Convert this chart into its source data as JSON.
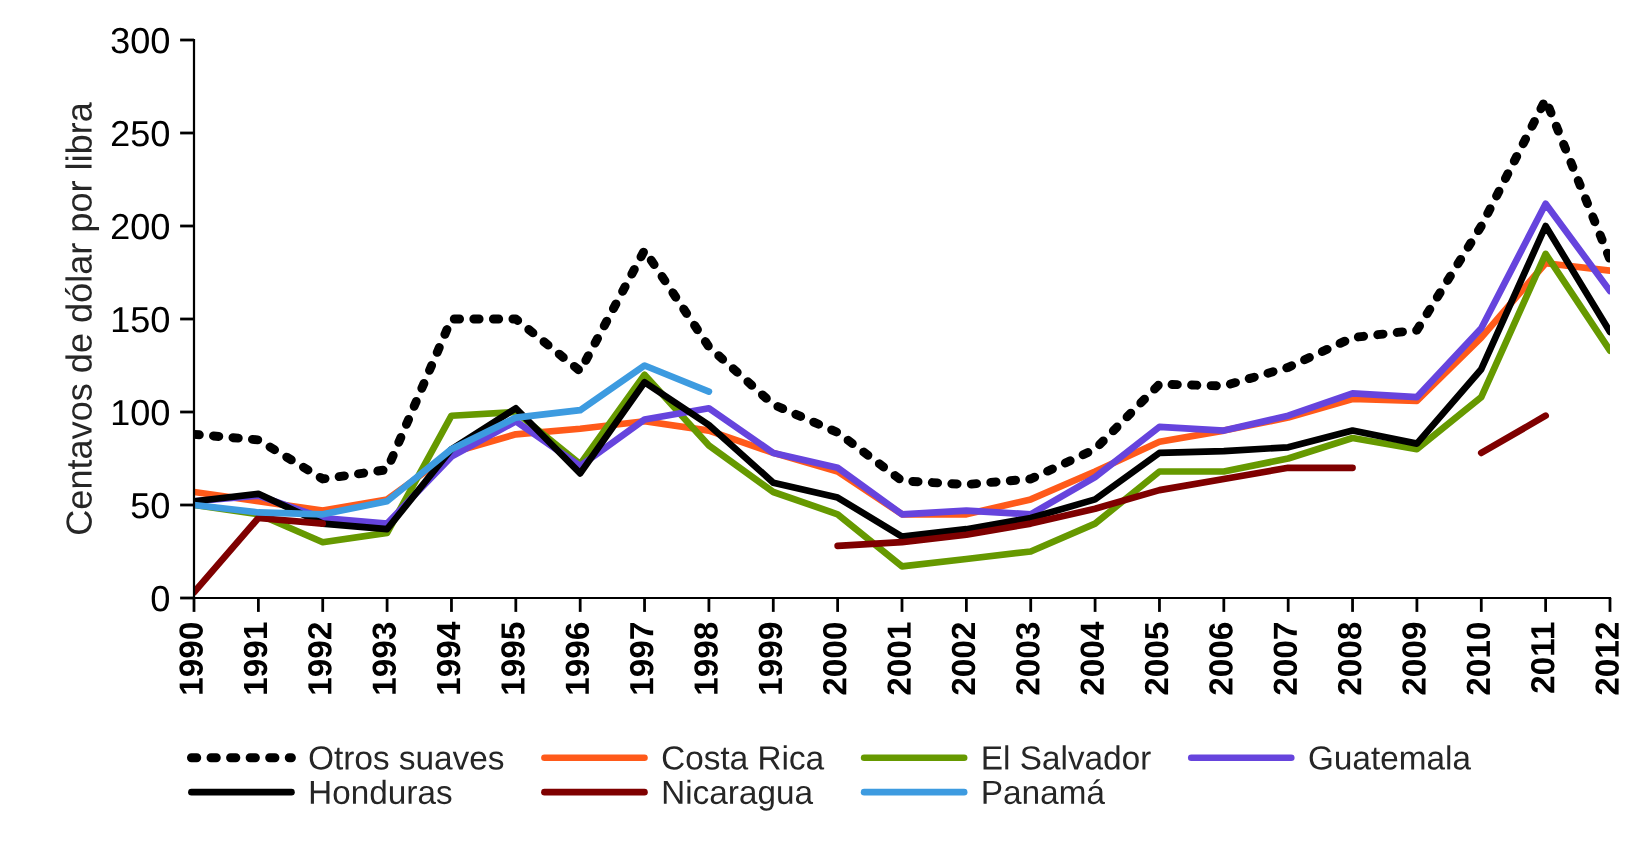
{
  "chart_data": {
    "type": "line",
    "ylabel": "Centavos de dólar por libra",
    "categories": [
      "1990",
      "1991",
      "1992",
      "1993",
      "1994",
      "1995",
      "1996",
      "1997",
      "1998",
      "1999",
      "2000",
      "2001",
      "2002",
      "2003",
      "2004",
      "2005",
      "2006",
      "2007",
      "2008",
      "2009",
      "2010",
      "2011",
      "2012"
    ],
    "series": [
      {
        "name": "Otros suaves",
        "color": "#000000",
        "line_style": "dotted",
        "values": [
          88,
          85,
          64,
          69,
          150,
          150,
          122,
          187,
          135,
          104,
          89,
          63,
          61,
          64,
          80,
          115,
          114,
          124,
          140,
          144,
          200,
          268,
          182
        ]
      },
      {
        "name": "Costa Rica",
        "color": "#ff5a1a",
        "values": [
          57,
          52,
          47,
          53,
          78,
          88,
          91,
          95,
          90,
          78,
          68,
          45,
          45,
          53,
          68,
          84,
          90,
          97,
          107,
          106,
          140,
          180,
          176
        ]
      },
      {
        "name": "El Salvador",
        "color": "#669900",
        "values": [
          50,
          45,
          30,
          35,
          98,
          100,
          72,
          120,
          82,
          57,
          45,
          17,
          21,
          25,
          40,
          68,
          68,
          75,
          86,
          80,
          108,
          185,
          133
        ]
      },
      {
        "name": "Guatemala",
        "color": "#6644dd",
        "values": [
          52,
          55,
          43,
          40,
          76,
          95,
          71,
          96,
          102,
          78,
          70,
          45,
          47,
          45,
          65,
          92,
          90,
          98,
          110,
          108,
          145,
          212,
          165
        ]
      },
      {
        "name": "Honduras",
        "color": "#000000",
        "values": [
          52,
          56,
          40,
          37,
          80,
          102,
          67,
          116,
          93,
          62,
          54,
          33,
          37,
          43,
          53,
          78,
          79,
          81,
          90,
          83,
          123,
          200,
          143
        ]
      },
      {
        "name": "Nicaragua",
        "color": "#7f0000",
        "values": [
          3,
          43,
          40,
          null,
          null,
          null,
          null,
          null,
          null,
          null,
          28,
          30,
          34,
          40,
          48,
          58,
          64,
          70,
          70,
          null,
          78,
          98,
          null
        ]
      },
      {
        "name": "Panamá",
        "color": "#3d9be0",
        "values": [
          50,
          46,
          45,
          52,
          80,
          97,
          101,
          125,
          111,
          null,
          null,
          null,
          null,
          null,
          null,
          null,
          null,
          null,
          null,
          null,
          null,
          null,
          null
        ]
      }
    ],
    "ylim": [
      0,
      300
    ],
    "yticks": [
      0,
      50,
      100,
      150,
      200,
      250,
      300
    ],
    "grid": false,
    "legend": "bottom",
    "marker": "none"
  }
}
